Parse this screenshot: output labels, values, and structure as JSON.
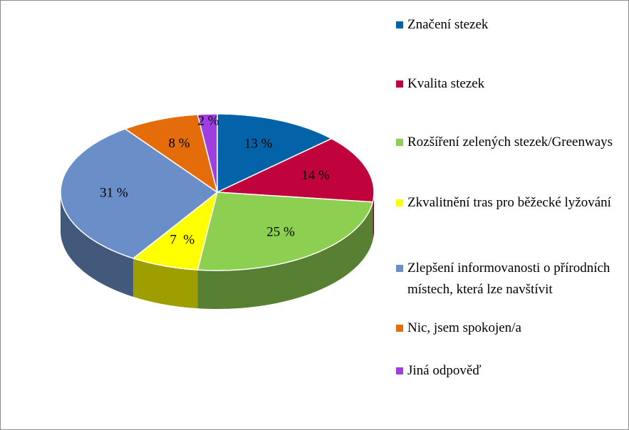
{
  "chart_data": {
    "type": "pie3d",
    "categories": [
      "Značení stezek",
      "Kvalita stezek",
      "Rozšíření zelených stezek/Greenways",
      "Zkvalitnění tras pro běžecké lyžování",
      "Zlepšení informovanosti o přírodních místech, která lze navštívit",
      "Nic, jsem spokojen/a",
      "Jiná odpověď"
    ],
    "values": [
      13,
      14,
      25,
      7,
      31,
      8,
      2
    ],
    "value_labels": [
      "13 %",
      "14 %",
      "25 %",
      "7  %",
      "31 %",
      "8 %",
      "2 %"
    ],
    "colors": [
      "#0462a9",
      "#c1033d",
      "#8dcf50",
      "#ffff00",
      "#6a8fc8",
      "#e46c0a",
      "#a03fe0"
    ],
    "legend": "right"
  }
}
